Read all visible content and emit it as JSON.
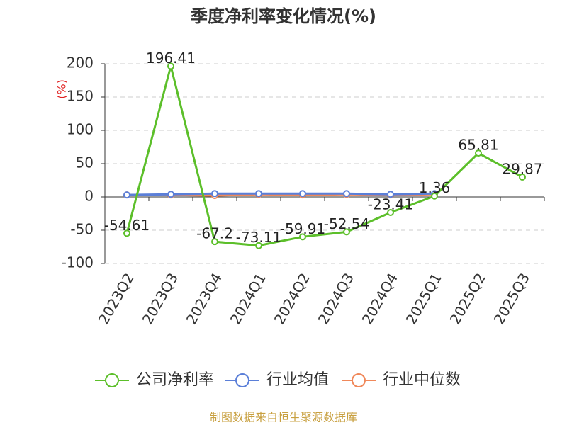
{
  "chart_data": {
    "type": "line",
    "title": "季度净利率变化情况(%)",
    "y_label": "(%)",
    "categories": [
      "2023Q2",
      "2023Q3",
      "2023Q4",
      "2024Q1",
      "2024Q2",
      "2024Q3",
      "2024Q4",
      "2025Q1",
      "2025Q2",
      "2025Q3"
    ],
    "series": [
      {
        "name": "公司净利率",
        "color": "#5cbf2a",
        "values": [
          -54.61,
          196.41,
          -67.2,
          -73.11,
          -59.91,
          -52.54,
          -23.41,
          1.36,
          65.81,
          29.87
        ],
        "data_labels": true
      },
      {
        "name": "行业均值",
        "color": "#5b7fd8",
        "values": [
          3,
          4,
          5,
          5,
          5,
          5,
          4,
          5,
          null,
          null
        ]
      },
      {
        "name": "行业中位数",
        "color": "#f0885a",
        "values": [
          3,
          3,
          2,
          4,
          3,
          4,
          3,
          4,
          null,
          null
        ]
      }
    ],
    "ylim": [
      -100,
      200
    ],
    "yticks": [
      -100,
      -50,
      0,
      50,
      100,
      150,
      200
    ],
    "grid": true,
    "source": "制图数据来自恒生聚源数据库"
  }
}
